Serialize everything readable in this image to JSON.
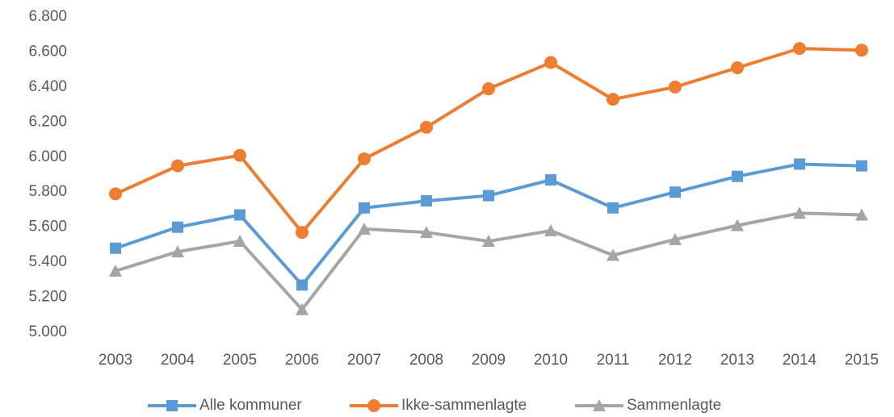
{
  "chart_data": {
    "type": "line",
    "categories": [
      "2003",
      "2004",
      "2005",
      "2006",
      "2007",
      "2008",
      "2009",
      "2010",
      "2011",
      "2012",
      "2013",
      "2014",
      "2015"
    ],
    "series": [
      {
        "name": "Alle kommuner",
        "color": "#5b9bd5",
        "marker": "square",
        "values": [
          5480,
          5600,
          5670,
          5270,
          5710,
          5750,
          5780,
          5870,
          5710,
          5800,
          5890,
          5960,
          5950
        ]
      },
      {
        "name": "Ikke-sammenlagte",
        "color": "#ed7d31",
        "marker": "circle",
        "values": [
          5790,
          5950,
          6010,
          5570,
          5990,
          6170,
          6390,
          6540,
          6330,
          6400,
          6510,
          6620,
          6610
        ]
      },
      {
        "name": "Sammenlagte",
        "color": "#a5a5a5",
        "marker": "triangle",
        "values": [
          5350,
          5460,
          5520,
          5130,
          5590,
          5570,
          5520,
          5580,
          5440,
          5530,
          5610,
          5680,
          5670
        ]
      }
    ],
    "ylim": [
      5000,
      6800
    ],
    "yticks": [
      {
        "value": 5000,
        "label": "5.000"
      },
      {
        "value": 5200,
        "label": "5.200"
      },
      {
        "value": 5400,
        "label": "5.400"
      },
      {
        "value": 5600,
        "label": "5.600"
      },
      {
        "value": 5800,
        "label": "5.800"
      },
      {
        "value": 6000,
        "label": "6.000"
      },
      {
        "value": 6200,
        "label": "6.200"
      },
      {
        "value": 6400,
        "label": "6.400"
      },
      {
        "value": 6600,
        "label": "6.600"
      },
      {
        "value": 6800,
        "label": "6.800"
      }
    ],
    "grid": false,
    "legend": "bottom"
  }
}
